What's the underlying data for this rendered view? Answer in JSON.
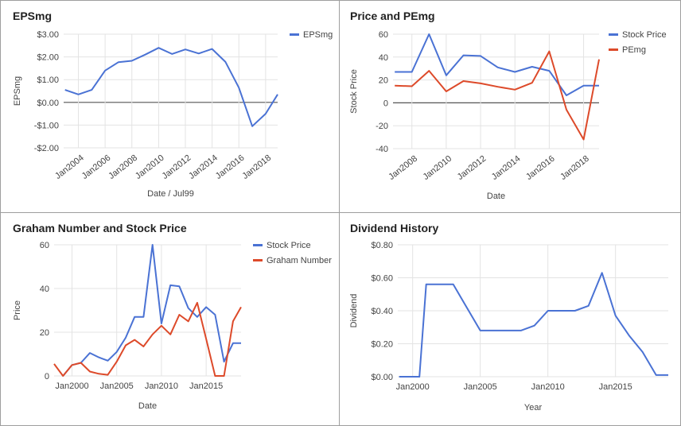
{
  "colors": {
    "blue": "#4a72d4",
    "red": "#dd4a2a",
    "zero": "#555555",
    "grid": "#e3e3e3",
    "text": "#444444",
    "title": "#222222"
  },
  "chart_data": [
    {
      "type": "line",
      "title": "EPSmg",
      "xlabel": "Date / Jul99",
      "ylabel": "EPSmg",
      "ylim": [
        -2,
        3
      ],
      "yticks": [
        3,
        2,
        1,
        0,
        -1,
        -2
      ],
      "ytick_labels": [
        "$3.00",
        "$2.00",
        "$1.00",
        "$0.00",
        "-$1.00",
        "-$2.00"
      ],
      "xlim": [
        2002.9,
        2018.9
      ],
      "xticks": [
        2004,
        2006,
        2008,
        2010,
        2012,
        2014,
        2016,
        2018
      ],
      "xtick_labels": [
        "Jan2004",
        "Jan2006",
        "Jan2008",
        "Jan2010",
        "Jan2012",
        "Jan2014",
        "Jan2016",
        "Jan2018"
      ],
      "rotate_xticks": true,
      "legend_position": "right",
      "zero_line": true,
      "series": [
        {
          "name": "EPSmg",
          "color": "blue",
          "x": [
            2003,
            2004,
            2005,
            2006,
            2007,
            2008,
            2009,
            2010,
            2011,
            2012,
            2013,
            2014,
            2015,
            2016,
            2017,
            2018,
            2018.9
          ],
          "y": [
            0.55,
            0.35,
            0.55,
            1.4,
            1.77,
            1.83,
            2.1,
            2.4,
            2.13,
            2.33,
            2.15,
            2.35,
            1.78,
            0.65,
            -1.05,
            -0.5,
            0.35
          ]
        }
      ]
    },
    {
      "type": "line",
      "title": "Price and PEmg",
      "xlabel": "Date",
      "ylabel": "Stock Price",
      "ylim": [
        -40,
        60
      ],
      "yticks": [
        60,
        40,
        20,
        0,
        -20,
        -40
      ],
      "ytick_labels": [
        "60",
        "40",
        "20",
        "0",
        "-20",
        "-40"
      ],
      "xlim": [
        2006.9,
        2018.9
      ],
      "xticks": [
        2008,
        2010,
        2012,
        2014,
        2016,
        2018
      ],
      "xtick_labels": [
        "Jan2008",
        "Jan2010",
        "Jan2012",
        "Jan2014",
        "Jan2016",
        "Jan2018"
      ],
      "rotate_xticks": true,
      "legend_position": "right",
      "zero_line": true,
      "series": [
        {
          "name": "Stock Price",
          "color": "blue",
          "x": [
            2007,
            2008,
            2009,
            2010,
            2011,
            2012,
            2013,
            2014,
            2015,
            2016,
            2017,
            2018,
            2018.9
          ],
          "y": [
            27,
            27,
            60,
            24,
            41.5,
            41,
            31,
            27,
            31.5,
            28,
            6.5,
            15,
            15
          ]
        },
        {
          "name": "PEmg",
          "color": "red",
          "x": [
            2007,
            2008,
            2009,
            2010,
            2011,
            2012,
            2013,
            2014,
            2015,
            2016,
            2017,
            2018,
            2018.9
          ],
          "y": [
            15,
            14.5,
            28,
            10,
            19,
            17,
            14,
            11.5,
            17.5,
            45,
            -6,
            -32,
            38
          ]
        }
      ]
    },
    {
      "type": "line",
      "title": "Graham Number and Stock Price",
      "xlabel": "Date",
      "ylabel": "Price",
      "ylim": [
        0,
        60
      ],
      "yticks": [
        60,
        40,
        20,
        0
      ],
      "ytick_labels": [
        "60",
        "40",
        "20",
        "0"
      ],
      "xlim": [
        1998,
        2018.9
      ],
      "xticks": [
        2000,
        2005,
        2010,
        2015
      ],
      "xtick_labels": [
        "Jan2000",
        "Jan2005",
        "Jan2010",
        "Jan2015"
      ],
      "rotate_xticks": false,
      "legend_position": "right",
      "zero_line": false,
      "series": [
        {
          "name": "Stock Price",
          "color": "blue",
          "x": [
            1999,
            2000,
            2001,
            2002,
            2003,
            2004,
            2005,
            2006,
            2007,
            2008,
            2009,
            2010,
            2011,
            2012,
            2013,
            2014,
            2015,
            2016,
            2017,
            2018,
            2018.9
          ],
          "y": [
            0,
            5,
            6,
            10.5,
            8.5,
            7,
            11,
            17.5,
            27,
            27,
            60,
            24,
            41.5,
            41,
            31,
            27,
            31.5,
            28,
            6.5,
            15,
            15
          ]
        },
        {
          "name": "Graham Number",
          "color": "red",
          "x": [
            1998,
            1999,
            2000,
            2001,
            2002,
            2003,
            2004,
            2005,
            2006,
            2007,
            2008,
            2009,
            2010,
            2011,
            2012,
            2013,
            2014,
            2015,
            2016,
            2017,
            2018,
            2018.9
          ],
          "y": [
            5.5,
            0,
            5,
            6,
            2,
            1,
            0.5,
            6.5,
            14,
            16.5,
            13.5,
            19,
            23,
            19,
            28,
            25,
            33.5,
            17,
            0,
            0,
            25,
            31.5
          ]
        }
      ]
    },
    {
      "type": "line",
      "title": "Dividend History",
      "xlabel": "Year",
      "ylabel": "Dividend",
      "ylim": [
        0,
        0.8
      ],
      "yticks": [
        0.8,
        0.6,
        0.4,
        0.2,
        0
      ],
      "ytick_labels": [
        "$0.80",
        "$0.60",
        "$0.40",
        "$0.20",
        "$0.00"
      ],
      "xlim": [
        1998.9,
        2018.9
      ],
      "xticks": [
        2000,
        2005,
        2010,
        2015
      ],
      "xtick_labels": [
        "Jan2000",
        "Jan2005",
        "Jan2010",
        "Jan2015"
      ],
      "rotate_xticks": false,
      "legend_position": "none",
      "zero_line": false,
      "series": [
        {
          "name": "",
          "color": "blue",
          "x": [
            1999,
            2000.5,
            2001,
            2002,
            2003,
            2004,
            2005,
            2006,
            2007,
            2008,
            2009,
            2010,
            2011,
            2012,
            2013,
            2014,
            2015,
            2016,
            2017,
            2018,
            2018.9
          ],
          "y": [
            0,
            0,
            0.56,
            0.56,
            0.56,
            0.42,
            0.28,
            0.28,
            0.28,
            0.28,
            0.31,
            0.4,
            0.4,
            0.4,
            0.43,
            0.63,
            0.37,
            0.25,
            0.15,
            0.01,
            0.01
          ]
        }
      ]
    }
  ]
}
